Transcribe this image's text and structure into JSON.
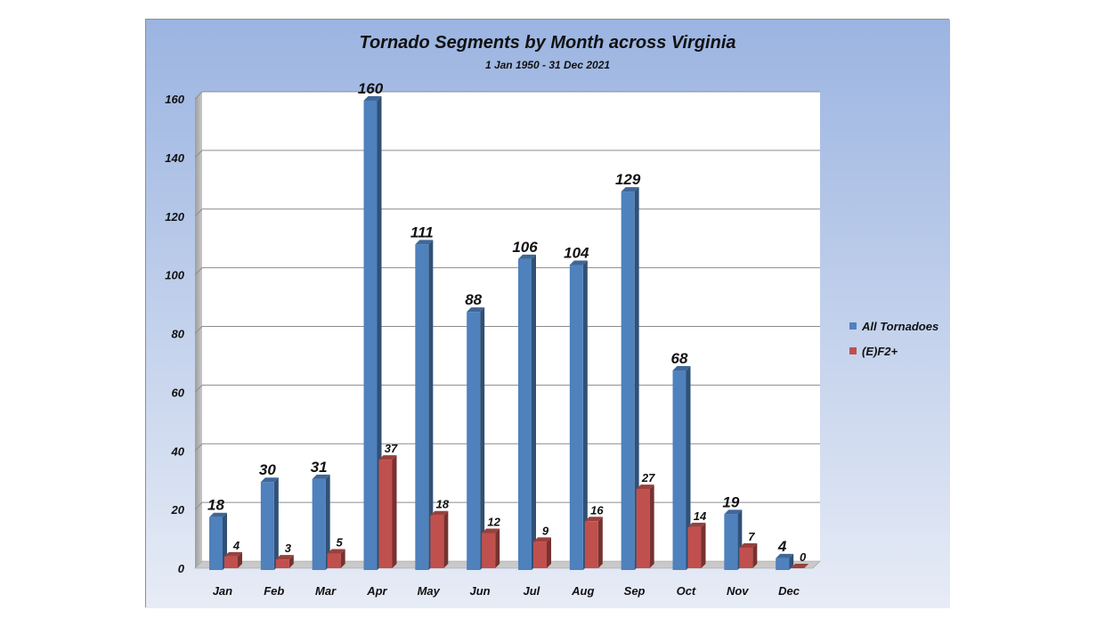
{
  "chart_data": {
    "type": "bar",
    "title": "Tornado Segments by Month across Virginia",
    "subtitle": "1 Jan 1950 - 31 Dec 2021",
    "xlabel": "",
    "ylabel": "",
    "categories": [
      "Jan",
      "Feb",
      "Mar",
      "Apr",
      "May",
      "Jun",
      "Jul",
      "Aug",
      "Sep",
      "Oct",
      "Nov",
      "Dec"
    ],
    "series": [
      {
        "name": "All Tornadoes",
        "color": "#4f81bd",
        "values": [
          18,
          30,
          31,
          160,
          111,
          88,
          106,
          104,
          129,
          68,
          19,
          4
        ]
      },
      {
        "name": "(E)F2+",
        "color": "#c0504d",
        "values": [
          4,
          3,
          5,
          37,
          18,
          12,
          9,
          16,
          27,
          14,
          7,
          0
        ]
      }
    ],
    "ylim": [
      0,
      160
    ],
    "yticks": [
      0,
      20,
      40,
      60,
      80,
      100,
      120,
      140,
      160
    ],
    "grid": true,
    "legend_position": "right"
  }
}
